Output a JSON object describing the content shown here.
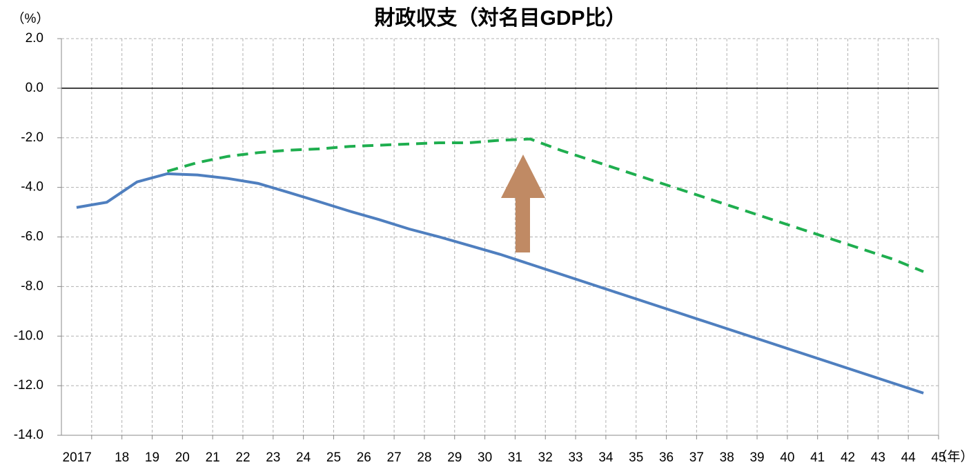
{
  "chart_data": {
    "type": "line",
    "title": "財政収支（対名目GDP比）",
    "y_unit": "（%）",
    "x_unit": "（年）",
    "categories": [
      "2017",
      "18",
      "19",
      "20",
      "21",
      "22",
      "23",
      "24",
      "25",
      "26",
      "27",
      "28",
      "29",
      "30",
      "31",
      "32",
      "33",
      "34",
      "35",
      "36",
      "37",
      "38",
      "39",
      "40",
      "41",
      "42",
      "43",
      "44",
      "45"
    ],
    "series": [
      {
        "color": "#4f7fbf",
        "dash": false,
        "values": [
          -4.81,
          -4.6,
          -3.78,
          -3.45,
          -3.5,
          -3.64,
          -3.84,
          -4.2,
          -4.57,
          -4.95,
          -5.3,
          -5.68,
          -6.0,
          -6.35,
          -6.7,
          -7.1,
          -7.5,
          -7.9,
          -8.3,
          -8.7,
          -9.1,
          -9.5,
          -9.9,
          -10.3,
          -10.7,
          -11.1,
          -11.5,
          -11.9,
          -12.3
        ]
      },
      {
        "color": "#1fae4f",
        "dash": true,
        "values": [
          null,
          null,
          null,
          -3.35,
          -3.0,
          -2.75,
          -2.6,
          -2.5,
          -2.45,
          -2.35,
          -2.3,
          -2.25,
          -2.2,
          -2.2,
          -2.1,
          -2.05,
          -2.5,
          -2.9,
          -3.3,
          -3.7,
          -4.1,
          -4.5,
          -4.9,
          -5.3,
          -5.7,
          -6.1,
          -6.5,
          -6.9,
          -7.4
        ]
      }
    ],
    "ylim": [
      -14,
      2
    ],
    "yticks": [
      {
        "value": 2,
        "label": "2.0"
      },
      {
        "value": 0,
        "label": "0.0"
      },
      {
        "value": -2,
        "label": "-2.0"
      },
      {
        "value": -4,
        "label": "-4.0"
      },
      {
        "value": -6,
        "label": "-6.0"
      },
      {
        "value": -8,
        "label": "-8.0"
      },
      {
        "value": -10,
        "label": "-10.0"
      },
      {
        "value": -12,
        "label": "-12.0"
      },
      {
        "value": -14,
        "label": "-14.0"
      }
    ],
    "grid": true
  }
}
